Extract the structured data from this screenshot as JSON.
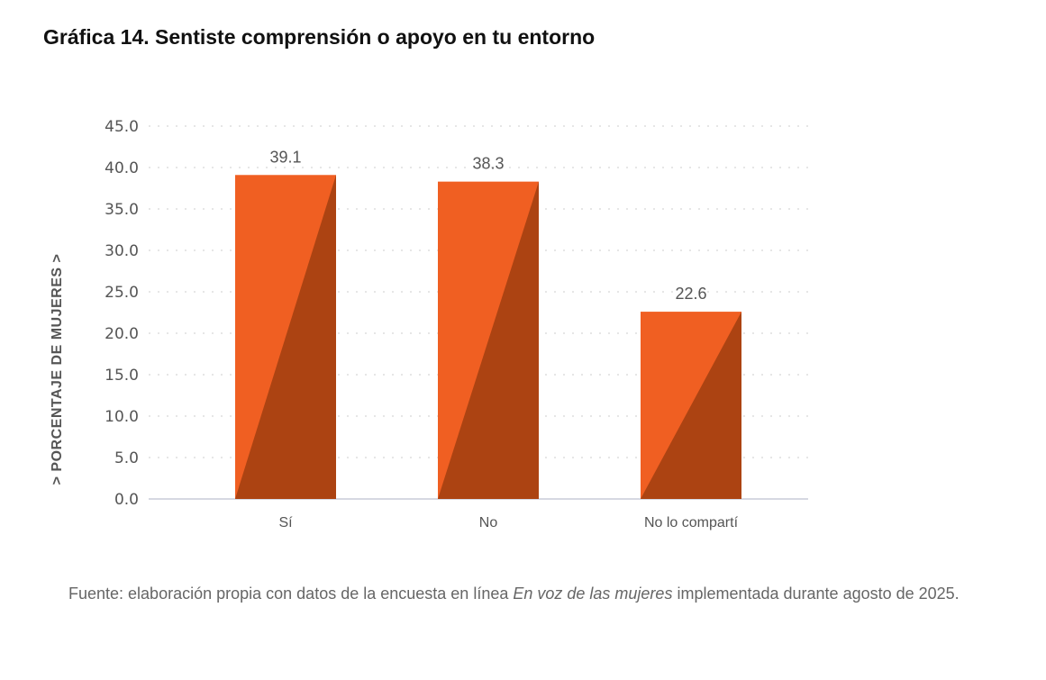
{
  "chart_data": {
    "type": "bar",
    "title": "Gráfica 14. Sentiste comprensión o apoyo en tu entorno",
    "ylabel": "> PORCENTAJE DE MUJERES >",
    "xlabel": "",
    "categories": [
      "Sí",
      "No",
      "No lo compartí"
    ],
    "values": [
      39.1,
      38.3,
      22.6
    ],
    "value_labels": [
      "39.1",
      "38.3",
      "22.6"
    ],
    "ylim": [
      0,
      45
    ],
    "yticks": [
      "0.0",
      "5.0",
      "10.0",
      "15.0",
      "20.0",
      "25.0",
      "30.0",
      "35.0",
      "40.0",
      "45.0"
    ],
    "grid": true,
    "colors": {
      "bar": "#F05F22",
      "bar_shade": "#AC4312",
      "axis": "#C8CCD8",
      "grid": "#CCCCCC",
      "text": "#555555"
    }
  },
  "footnote": {
    "before": "Fuente: elaboración propia con datos de la encuesta en línea ",
    "italic": "En voz de las mujeres",
    "after": " implementada durante agosto de 2025."
  }
}
